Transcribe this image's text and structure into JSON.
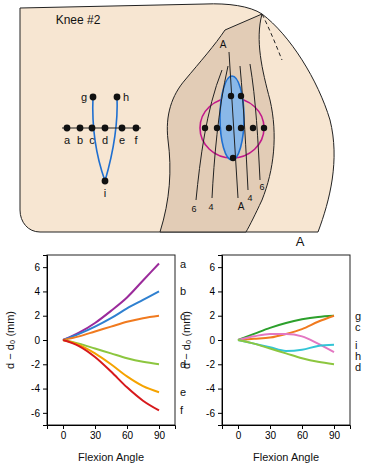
{
  "diagram": {
    "title": "Knee #2",
    "points": [
      "a",
      "b",
      "c",
      "d",
      "e",
      "f",
      "g",
      "h",
      "i"
    ],
    "axis_labels": [
      "A",
      "A"
    ],
    "contour_labels": [
      "6",
      "4",
      "4",
      "6"
    ],
    "panel_label": "A"
  },
  "chart_data": [
    {
      "type": "line",
      "x_label": "Flexion Angle",
      "y_label": "d − d₀ (mm)",
      "x": [
        0,
        15,
        30,
        45,
        60,
        75,
        90
      ],
      "xlim": [
        -15,
        105
      ],
      "xticks": [
        0,
        30,
        60,
        90
      ],
      "ylim": [
        -7,
        7
      ],
      "yticks": [
        -6,
        -4,
        -2,
        0,
        2,
        4,
        6
      ],
      "series": [
        {
          "name": "a",
          "color": "#9b2b9b",
          "values": [
            0,
            0.6,
            1.4,
            2.4,
            3.5,
            4.9,
            6.3
          ]
        },
        {
          "name": "b",
          "color": "#2f80d0",
          "values": [
            0,
            0.5,
            1.1,
            1.8,
            2.6,
            3.3,
            4.0
          ]
        },
        {
          "name": "c",
          "color": "#f07a1f",
          "values": [
            0,
            0.3,
            0.7,
            1.1,
            1.5,
            1.8,
            2.0
          ]
        },
        {
          "name": "d",
          "color": "#8cc63f",
          "values": [
            0,
            -0.3,
            -0.7,
            -1.1,
            -1.5,
            -1.8,
            -2.0
          ]
        },
        {
          "name": "e",
          "color": "#f5a300",
          "values": [
            0,
            -0.4,
            -1.1,
            -2.0,
            -3.0,
            -3.8,
            -4.3
          ]
        },
        {
          "name": "f",
          "color": "#d7191c",
          "values": [
            0,
            -0.5,
            -1.4,
            -2.6,
            -3.9,
            -5.0,
            -5.8
          ]
        }
      ]
    },
    {
      "type": "line",
      "x_label": "Flexion Angle",
      "y_label": "d − d₀ (mm)",
      "x": [
        0,
        15,
        30,
        45,
        60,
        75,
        90
      ],
      "xlim": [
        -15,
        105
      ],
      "xticks": [
        0,
        30,
        60,
        90
      ],
      "ylim": [
        -7,
        7
      ],
      "yticks": [
        -6,
        -4,
        -2,
        0,
        2,
        4,
        6
      ],
      "series": [
        {
          "name": "g",
          "color": "#2ca02c",
          "values": [
            0,
            0.5,
            1.0,
            1.4,
            1.7,
            1.9,
            2.0
          ]
        },
        {
          "name": "c",
          "color": "#f07a1f",
          "values": [
            0,
            0.1,
            0.2,
            0.5,
            0.9,
            1.5,
            2.0
          ]
        },
        {
          "name": "h",
          "color": "#e377c2",
          "values": [
            0,
            0.3,
            0.5,
            0.5,
            0.3,
            -0.3,
            -1.0
          ]
        },
        {
          "name": "i",
          "color": "#33c5d6",
          "values": [
            0,
            -0.3,
            -0.6,
            -0.9,
            -0.8,
            -0.5,
            -0.4
          ]
        },
        {
          "name": "d",
          "color": "#8cc63f",
          "values": [
            0,
            -0.3,
            -0.7,
            -1.1,
            -1.5,
            -1.8,
            -2.0
          ]
        }
      ]
    }
  ]
}
